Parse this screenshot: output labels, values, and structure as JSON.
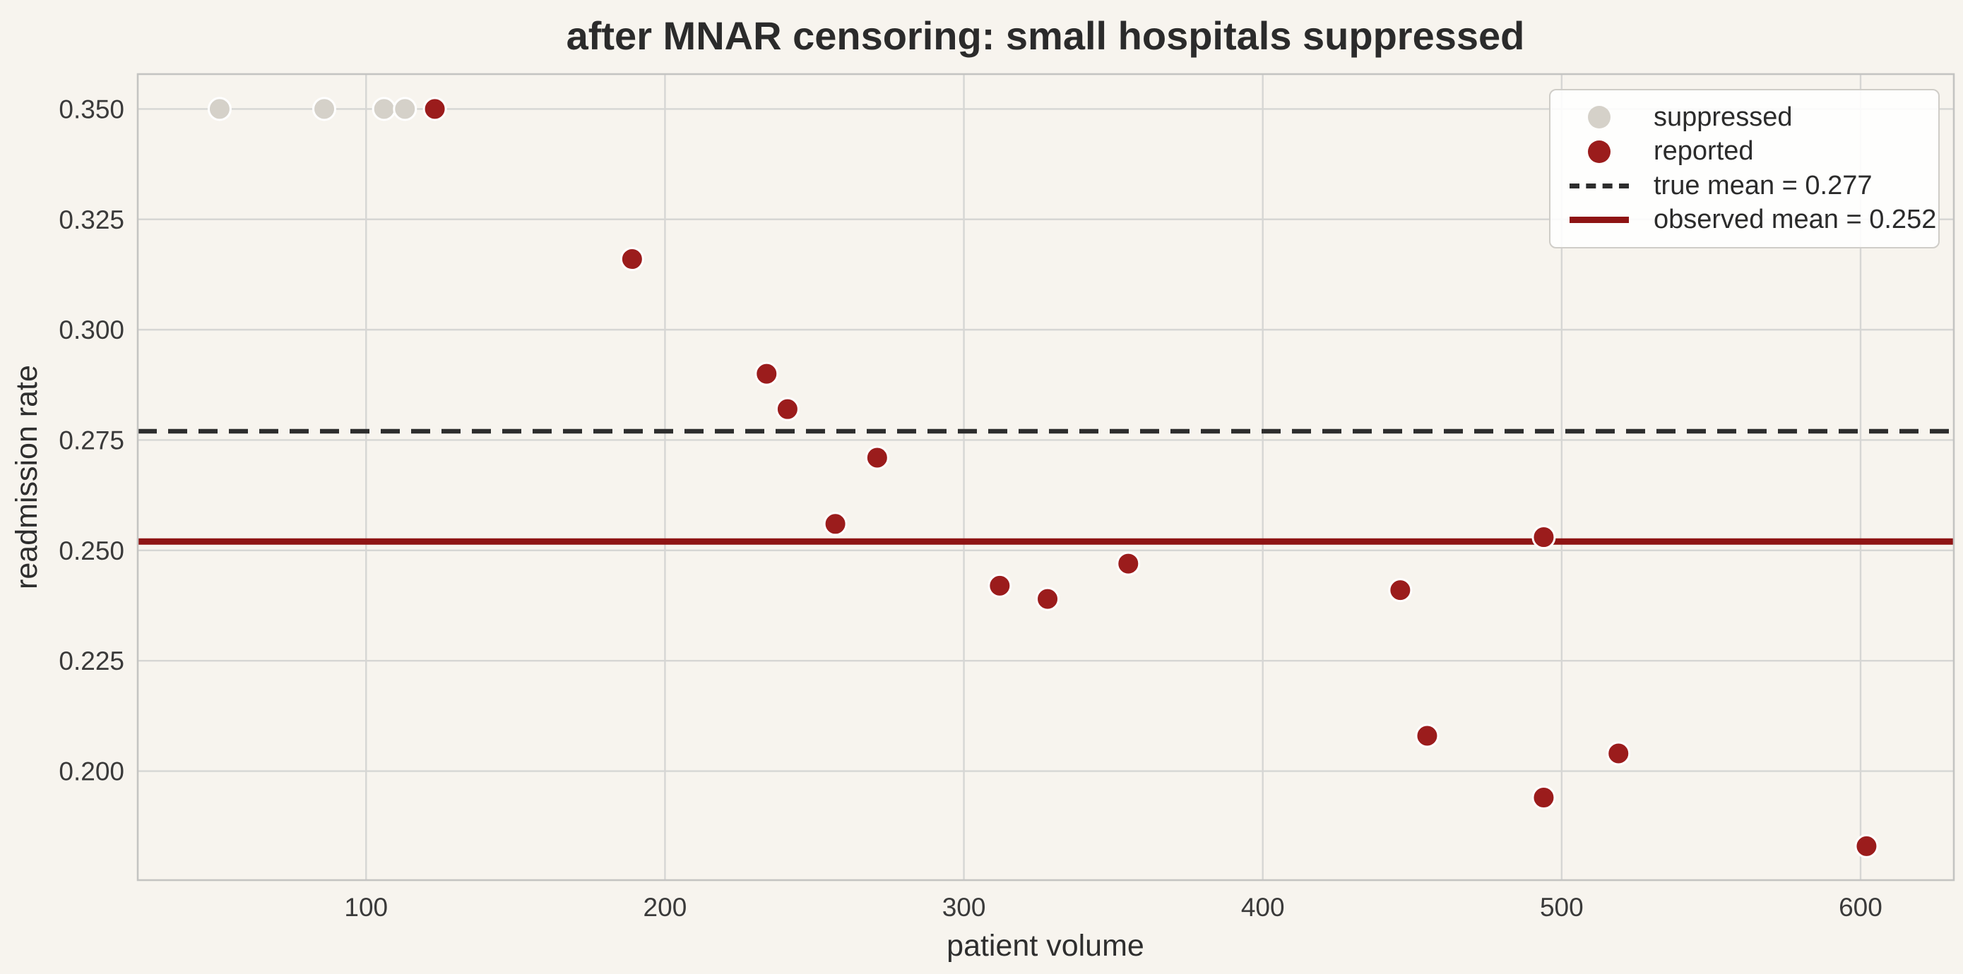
{
  "chart_data": {
    "type": "scatter",
    "title": "after MNAR censoring: small hospitals suppressed",
    "xlabel": "patient volume",
    "ylabel": "readmission rate",
    "xlim": [
      23.6,
      631.2
    ],
    "ylim": [
      0.1753,
      0.3579
    ],
    "grid": true,
    "legend_position": "upper right",
    "x_ticks": [
      {
        "value": 100,
        "label": "100"
      },
      {
        "value": 200,
        "label": "200"
      },
      {
        "value": 300,
        "label": "300"
      },
      {
        "value": 400,
        "label": "400"
      },
      {
        "value": 500,
        "label": "500"
      },
      {
        "value": 600,
        "label": "600"
      }
    ],
    "y_ticks": [
      {
        "value": 0.2,
        "label": "0.200"
      },
      {
        "value": 0.225,
        "label": "0.225"
      },
      {
        "value": 0.25,
        "label": "0.250"
      },
      {
        "value": 0.275,
        "label": "0.275"
      },
      {
        "value": 0.3,
        "label": "0.300"
      },
      {
        "value": 0.325,
        "label": "0.325"
      },
      {
        "value": 0.35,
        "label": "0.350"
      }
    ],
    "series": [
      {
        "name": "suppressed",
        "color": "#d5d1c9",
        "points": [
          [
            51,
            0.35
          ],
          [
            86,
            0.35
          ],
          [
            106,
            0.35
          ],
          [
            113,
            0.35
          ]
        ]
      },
      {
        "name": "reported",
        "color": "#9b1c1c",
        "points": [
          [
            123,
            0.35
          ],
          [
            189,
            0.316
          ],
          [
            234,
            0.29
          ],
          [
            241,
            0.282
          ],
          [
            257,
            0.256
          ],
          [
            271,
            0.271
          ],
          [
            312,
            0.242
          ],
          [
            328,
            0.239
          ],
          [
            355,
            0.247
          ],
          [
            446,
            0.241
          ],
          [
            455,
            0.208
          ],
          [
            494,
            0.253
          ],
          [
            494,
            0.194
          ],
          [
            519,
            0.204
          ],
          [
            602,
            0.183
          ]
        ]
      }
    ],
    "lines": [
      {
        "name": "true mean = 0.277",
        "value": 0.277,
        "style": "dashed",
        "color": "#2d2d2d"
      },
      {
        "name": "observed mean = 0.252",
        "value": 0.252,
        "style": "solid",
        "color": "#8e1414"
      }
    ]
  },
  "legend": {
    "items": [
      {
        "swatch": "dot",
        "color": "#d5d1c9",
        "label": "suppressed"
      },
      {
        "swatch": "dot",
        "color": "#9b1c1c",
        "label": "reported"
      },
      {
        "swatch": "dashed-line",
        "color": "#2d2d2d",
        "label": "true mean = 0.277"
      },
      {
        "swatch": "solid-line",
        "color": "#8e1414",
        "label": "observed mean = 0.252"
      }
    ]
  },
  "colors": {
    "background": "#f7f4ee",
    "gridline": "#d6d6d4",
    "spine": "#c4c4c2",
    "marker_edge": "#ffffff"
  }
}
